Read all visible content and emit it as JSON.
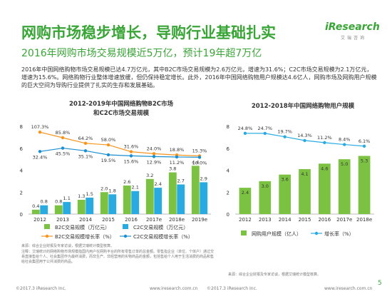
{
  "header": {
    "title": "网购市场稳步增长，导购行业基础扎实",
    "subtitle": "2016年网购市场交易规模近5万亿，预计19年超7万亿",
    "logo": "iResearch",
    "logo_sub": "艾瑞咨询",
    "body": "2016年中国网络购物市场交易规模已达4.7万亿元，其中B2C市场交易规模为2.6万亿元，增速为31.6%；C2C市场交易规模为2.1万亿元，增速为15.6%。网络购物行业整体增速放缓，但仍保持稳定增长。此外，2016年中国网络购物用户规模达4.6亿人，网购市场及网购用户规模的巨大空间为导购行业提供了扎实的生存和发展基础。"
  },
  "chart_data": [
    {
      "type": "combo",
      "title": "2012-2019年中国网络购物B2C市场和C2C市场交易规模",
      "categories": [
        "2012",
        "2013",
        "2014",
        "2015",
        "2016",
        "2017e",
        "2018e",
        "2019e"
      ],
      "ylim": [
        0,
        8
      ],
      "yticks": [
        0,
        2,
        4,
        6,
        8
      ],
      "y2lim": [
        -210,
        130
      ],
      "grid": false,
      "series": [
        {
          "name": "B2C交易规模（万亿元）",
          "type": "bar",
          "color": "#7cc242",
          "values": [
            0.4,
            0.8,
            1.3,
            2.0,
            2.6,
            3.2,
            3.8,
            4.4
          ],
          "value_labels": [
            "0.4",
            "0.8",
            "1.3",
            "2.0",
            "2.6",
            "3.2",
            "3.8",
            "4.4"
          ]
        },
        {
          "name": "C2C交易规模（万亿元）",
          "type": "bar",
          "color": "#29abe2",
          "values": [
            0.8,
            1.1,
            1.5,
            1.8,
            2.1,
            2.4,
            2.7,
            2.9
          ],
          "value_labels": [
            "0.8",
            "1.1",
            "1.5",
            "1.8",
            "2.1",
            "2.4",
            "2.7",
            "2.9"
          ]
        },
        {
          "name": "B2C交易规模增长率（%）",
          "type": "line",
          "axis": "y2",
          "color": "#f7941d",
          "values": [
            107.3,
            85.8,
            64.2,
            58.0,
            31.6,
            24.0,
            18.8,
            15.3
          ],
          "value_labels": [
            "107.3%",
            "85.8%",
            "64.2%",
            "58.0%",
            "31.6%",
            "24.0%",
            "18.8%",
            "15.3%"
          ]
        },
        {
          "name": "C2C交易规模增长率（%）",
          "type": "line",
          "axis": "y2",
          "color": "#1a8fd0",
          "values": [
            32.4,
            45.5,
            35.1,
            19.5,
            15.6,
            12.9,
            11.2,
            10.0
          ],
          "value_labels": [
            "32.4%",
            "45.5%",
            "35.1%",
            "19.5%",
            "15.6%",
            "12.9%",
            "11.2%",
            "10.0%"
          ]
        }
      ],
      "source": "来源：综合企业财报及专家访谈，根据艾瑞统计模型核算。",
      "note": "注释：艾瑞统计的网络购物市场规模指国内用户在网购平台的所有零售订单的总金额。零售指企业（单位、个体户）通过交易直接售给个人、社会集团作为最终消费，而非生产、非经营用的实物商品的金额，包括售给个人用于生活消费的商品和售给社会集团用于公共消费的商品。"
    },
    {
      "type": "combo",
      "title": "2012-2018年中国网络购物用户规模",
      "categories": [
        "2012",
        "2013",
        "2014",
        "2015",
        "2016",
        "2017e",
        "2018e"
      ],
      "ylim": [
        0,
        8
      ],
      "yticks": [
        0,
        2,
        4,
        6,
        8
      ],
      "y2lim": [
        -93,
        35
      ],
      "grid": false,
      "series": [
        {
          "name": "网购用户规模（亿人）",
          "type": "bar",
          "color": "#7cc242",
          "values": [
            2.4,
            3.0,
            3.6,
            4.1,
            4.6,
            5.0,
            5.3
          ],
          "value_labels": [
            "2.4",
            "3.0",
            "3.6",
            "4.1",
            "4.6",
            "5.0",
            "5.3"
          ]
        },
        {
          "name": "增长率（%）",
          "type": "line",
          "axis": "y2",
          "color": "#29abe2",
          "values": [
            24.8,
            24.7,
            19.7,
            14.3,
            11.2,
            8.4,
            6.1
          ],
          "value_labels": [
            "24.8%",
            "24.7%",
            "19.7%",
            "14.3%",
            "11.2%",
            "8.4%",
            "6.1%"
          ]
        }
      ],
      "source": "来源：综合企业财报及专家访谈，根据艾瑞统计模型核算。"
    }
  ],
  "footer": {
    "copyright": [
      "©2017.3 iResearch Inc.",
      "©2017.3 iResearch Inc."
    ],
    "url": [
      "www.iresearch.com.cn",
      "www.iresearch.com.cn"
    ],
    "page": "5"
  }
}
